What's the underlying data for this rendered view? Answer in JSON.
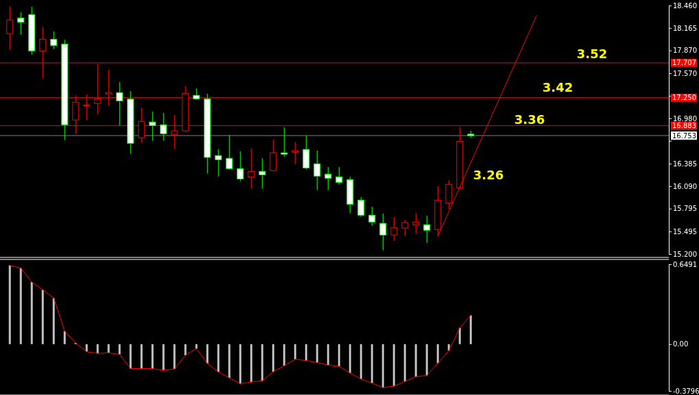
{
  "chart_data": [
    {
      "type": "candlestick",
      "categories": [
        null,
        null,
        null,
        null,
        null,
        null,
        null,
        null,
        null,
        null,
        null,
        null,
        null,
        null,
        null,
        null,
        null,
        null,
        null,
        null,
        null,
        null,
        null,
        null,
        null,
        null,
        null,
        null,
        null,
        null,
        null,
        null,
        null,
        null,
        null,
        null,
        null,
        null,
        null,
        null,
        null,
        null,
        null,
        null,
        null,
        null,
        null,
        null,
        null,
        null,
        null,
        null,
        null,
        null,
        null,
        null,
        null,
        null,
        null,
        null,
        null
      ],
      "ohlc": [
        [
          18.09,
          18.451,
          17.879,
          18.269
        ],
        [
          18.296,
          18.37,
          18.077,
          18.242
        ],
        [
          18.341,
          18.442,
          17.816,
          17.865
        ],
        [
          17.865,
          18.179,
          17.502,
          18.017
        ],
        [
          18.017,
          18.119,
          17.888,
          17.936
        ],
        [
          17.954,
          18.011,
          16.694,
          16.895
        ],
        [
          16.958,
          17.281,
          16.774,
          17.191
        ],
        [
          17.15,
          17.293,
          16.954,
          17.155
        ],
        [
          17.173,
          17.694,
          17.035,
          17.236
        ],
        [
          17.299,
          17.616,
          17.143,
          17.317
        ],
        [
          17.317,
          17.454,
          16.882,
          17.209
        ],
        [
          17.232,
          17.337,
          16.514,
          16.652
        ],
        [
          16.724,
          17.122,
          16.658,
          16.94
        ],
        [
          16.931,
          17.068,
          16.685,
          16.886
        ],
        [
          16.895,
          17.05,
          16.685,
          16.778
        ],
        [
          16.769,
          17.023,
          16.577,
          16.814
        ],
        [
          16.814,
          17.4,
          16.801,
          17.308
        ],
        [
          17.281,
          17.373,
          17.223,
          17.236
        ],
        [
          17.236,
          17.302,
          16.254,
          16.467
        ],
        [
          16.491,
          16.574,
          16.218,
          16.437
        ],
        [
          16.455,
          16.76,
          16.308,
          16.32
        ],
        [
          16.32,
          16.547,
          16.155,
          16.185
        ],
        [
          16.212,
          16.583,
          16.056,
          16.284
        ],
        [
          16.284,
          16.457,
          16.056,
          16.239
        ],
        [
          16.293,
          16.7,
          16.284,
          16.527
        ],
        [
          16.527,
          16.862,
          16.478,
          16.509
        ],
        [
          16.536,
          16.664,
          16.379,
          16.554
        ],
        [
          16.572,
          16.754,
          16.308,
          16.329
        ],
        [
          16.383,
          16.556,
          16.038,
          16.221
        ],
        [
          16.248,
          16.341,
          16.038,
          16.194
        ],
        [
          16.212,
          16.341,
          16.11,
          16.14
        ],
        [
          16.176,
          16.212,
          15.733,
          15.853
        ],
        [
          15.907,
          15.946,
          15.688,
          15.709
        ],
        [
          15.709,
          15.82,
          15.571,
          15.62
        ],
        [
          15.602,
          15.73,
          15.248,
          15.449
        ],
        [
          15.449,
          15.685,
          15.374,
          15.548
        ],
        [
          15.539,
          15.649,
          15.436,
          15.611
        ],
        [
          15.584,
          15.739,
          15.463,
          15.62
        ],
        [
          15.584,
          15.703,
          15.347,
          15.512
        ],
        [
          15.521,
          16.089,
          15.436,
          15.907
        ],
        [
          15.867,
          16.17,
          15.787,
          16.113
        ],
        [
          16.065,
          16.868,
          16.065,
          16.679
        ],
        [
          16.772,
          16.817,
          16.727,
          16.753
        ],
        null,
        null,
        null,
        null,
        null,
        null,
        null,
        null,
        null,
        null,
        null,
        null,
        null,
        null,
        null,
        null,
        null,
        null
      ],
      "ylim": [
        15.2,
        18.46
      ],
      "yticks": [
        {
          "value": 18.46,
          "label": "18.460"
        },
        {
          "value": 18.165,
          "label": "18.165"
        },
        {
          "value": 17.87,
          "label": "17.870"
        },
        {
          "value": 17.57,
          "label": "17.570"
        },
        {
          "value": 17.275,
          "label": null
        },
        {
          "value": 16.98,
          "label": "16.980"
        },
        {
          "value": 16.685,
          "label": null
        },
        {
          "value": 16.385,
          "label": "16.385"
        },
        {
          "value": 16.09,
          "label": "16.090"
        },
        {
          "value": 15.795,
          "label": "15.795"
        },
        {
          "value": 15.495,
          "label": "15.495"
        },
        {
          "value": 15.2,
          "label": "15.200"
        }
      ],
      "tick_labels": "y",
      "series": [
        {
          "type": "line",
          "color": "#ff0000",
          "values": [
            null,
            null,
            null,
            null,
            null,
            null,
            null,
            null,
            null,
            null,
            null,
            null,
            null,
            null,
            null,
            null,
            null,
            null,
            null,
            null,
            null,
            null,
            null,
            null,
            null,
            null,
            null,
            null,
            null,
            null,
            null,
            null,
            null,
            null,
            null,
            null,
            null,
            null,
            null,
            15.434,
            null,
            null,
            null,
            null,
            null,
            null,
            null,
            null,
            18.33,
            null,
            null,
            null,
            null,
            null,
            null,
            null,
            null,
            null,
            null,
            null,
            null
          ]
        }
      ],
      "ref_lines": [
        {
          "axis": "y",
          "value": 17.707,
          "label": "17.707",
          "color": "#ff0000"
        },
        {
          "axis": "y",
          "value": 17.25,
          "label": "17.250",
          "color": "#ff0000"
        },
        {
          "axis": "y",
          "value": 16.883,
          "label": "16.883",
          "color": "#ff0000"
        },
        {
          "axis": "y",
          "value": 16.753,
          "label": "16.753",
          "color": "#808080"
        }
      ],
      "annotations": [
        "3.52",
        "3.42",
        "3.36",
        "3.26"
      ]
    },
    {
      "type": "bar",
      "categories": [
        null,
        null,
        null,
        null,
        null,
        null,
        null,
        null,
        null,
        null,
        null,
        null,
        null,
        null,
        null,
        null,
        null,
        null,
        null,
        null,
        null,
        null,
        null,
        null,
        null,
        null,
        null,
        null,
        null,
        null,
        null,
        null,
        null,
        null,
        null,
        null,
        null,
        null,
        null,
        null,
        null,
        null,
        null,
        null,
        null,
        null,
        null,
        null,
        null,
        null,
        null,
        null,
        null,
        null,
        null,
        null,
        null,
        null,
        null,
        null,
        null
      ],
      "ylim": [
        -0.3796,
        0.6491
      ],
      "yticks": [
        {
          "value": 0.6491,
          "label": "0.6491"
        },
        {
          "value": 0,
          "label": "0.00"
        },
        {
          "value": -0.3796,
          "label": "-0.3796"
        }
      ],
      "tick_labels": "y",
      "series": [
        {
          "type": "bar",
          "color": "#c0c0c0",
          "values": [
            0.64,
            0.618,
            0.504,
            0.442,
            0.375,
            0.105,
            0.01,
            -0.061,
            -0.075,
            -0.07,
            -0.083,
            -0.199,
            -0.199,
            -0.199,
            -0.212,
            -0.202,
            -0.09,
            -0.036,
            -0.157,
            -0.226,
            -0.274,
            -0.321,
            -0.308,
            -0.298,
            -0.224,
            -0.175,
            -0.123,
            -0.133,
            -0.15,
            -0.17,
            -0.18,
            -0.234,
            -0.284,
            -0.316,
            -0.353,
            -0.341,
            -0.303,
            -0.264,
            -0.254,
            -0.155,
            -0.053,
            0.133,
            0.234,
            null,
            null,
            null,
            null,
            null,
            null,
            null,
            null,
            null,
            null,
            null,
            null,
            null,
            null,
            null,
            null,
            null,
            null
          ]
        },
        {
          "type": "line",
          "color": "#ff0000",
          "values": [
            0.64,
            0.618,
            0.504,
            0.442,
            0.375,
            0.105,
            0.01,
            -0.061,
            -0.075,
            -0.07,
            -0.083,
            -0.199,
            -0.199,
            -0.199,
            -0.212,
            -0.202,
            -0.09,
            -0.036,
            -0.157,
            -0.226,
            -0.274,
            -0.321,
            -0.308,
            -0.298,
            -0.224,
            -0.175,
            -0.123,
            -0.133,
            -0.15,
            -0.17,
            -0.18,
            -0.234,
            -0.284,
            -0.316,
            -0.353,
            -0.341,
            -0.303,
            -0.264,
            -0.254,
            -0.155,
            -0.053,
            0.133,
            0.234,
            null,
            null,
            null,
            null,
            null,
            null,
            null,
            null,
            null,
            null,
            null,
            null,
            null,
            null,
            null,
            null,
            null,
            null
          ]
        }
      ]
    }
  ]
}
